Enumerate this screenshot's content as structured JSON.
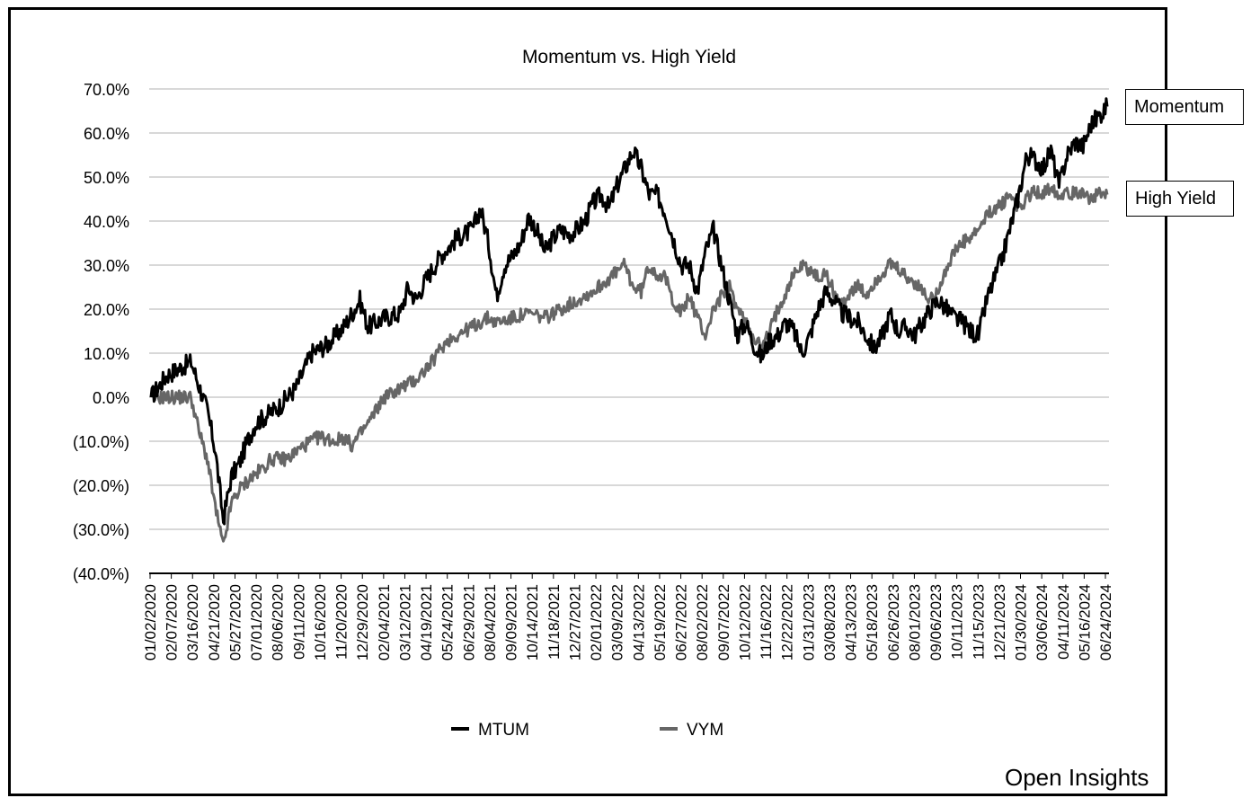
{
  "chart_data": {
    "type": "line",
    "title": "Momentum vs. High Yield",
    "xlabel": "",
    "ylabel": "",
    "ylim": [
      -40,
      70
    ],
    "yticks": [
      70,
      60,
      50,
      40,
      30,
      20,
      10,
      0,
      -10,
      -20,
      -30,
      -40
    ],
    "ytick_labels": [
      "70.0%",
      "60.0%",
      "50.0%",
      "40.0%",
      "30.0%",
      "20.0%",
      "10.0%",
      "0.0%",
      "(10.0%)",
      "(20.0%)",
      "(30.0%)",
      "(40.0%)"
    ],
    "xtick_labels": [
      "01/02/2020",
      "02/07/2020",
      "03/16/2020",
      "04/21/2020",
      "05/27/2020",
      "07/01/2020",
      "08/06/2020",
      "09/11/2020",
      "10/16/2020",
      "11/20/2020",
      "12/29/2020",
      "02/04/2021",
      "03/12/2021",
      "04/19/2021",
      "05/24/2021",
      "06/29/2021",
      "08/04/2021",
      "09/09/2021",
      "10/14/2021",
      "11/18/2021",
      "12/27/2021",
      "02/01/2022",
      "03/09/2022",
      "04/13/2022",
      "05/19/2022",
      "06/27/2022",
      "08/02/2022",
      "09/07/2022",
      "10/12/2022",
      "11/16/2022",
      "12/22/2022",
      "01/31/2023",
      "03/08/2023",
      "04/13/2023",
      "05/18/2023",
      "06/26/2023",
      "08/01/2023",
      "09/06/2023",
      "10/11/2023",
      "11/15/2023",
      "12/21/2023",
      "01/30/2024",
      "03/06/2024",
      "04/11/2024",
      "05/16/2024",
      "06/24/2024"
    ],
    "grid": true,
    "legend_position": "bottom",
    "series": [
      {
        "name": "MTUM",
        "color": "#000000",
        "values": [
          [
            0,
            0
          ],
          [
            2,
            5
          ],
          [
            5,
            8
          ],
          [
            7,
            -3
          ],
          [
            8,
            -12
          ],
          [
            9,
            -28
          ],
          [
            10,
            -18
          ],
          [
            11,
            -15
          ],
          [
            12,
            -10
          ],
          [
            13,
            -6
          ],
          [
            16,
            -2
          ],
          [
            18,
            2
          ],
          [
            20,
            10
          ],
          [
            22,
            12
          ],
          [
            24,
            16
          ],
          [
            26,
            22
          ],
          [
            27,
            16
          ],
          [
            29,
            18
          ],
          [
            31,
            19
          ],
          [
            32,
            25
          ],
          [
            33,
            22
          ],
          [
            34,
            26
          ],
          [
            36,
            32
          ],
          [
            38,
            36
          ],
          [
            40,
            38
          ],
          [
            41,
            43
          ],
          [
            42,
            35
          ],
          [
            43,
            23
          ],
          [
            44,
            30
          ],
          [
            45,
            32
          ],
          [
            46,
            35
          ],
          [
            47,
            41
          ],
          [
            48,
            38
          ],
          [
            49,
            33
          ],
          [
            50,
            36
          ],
          [
            51,
            38
          ],
          [
            52,
            37
          ],
          [
            53,
            38
          ],
          [
            54,
            40
          ],
          [
            55,
            44
          ],
          [
            56,
            46
          ],
          [
            57,
            43
          ],
          [
            58,
            48
          ],
          [
            59,
            52
          ],
          [
            60,
            56
          ],
          [
            61,
            52
          ],
          [
            62,
            46
          ],
          [
            63,
            46
          ],
          [
            64,
            42
          ],
          [
            65,
            36
          ],
          [
            66,
            30
          ],
          [
            67,
            30
          ],
          [
            68,
            24
          ],
          [
            69,
            33
          ],
          [
            70,
            38
          ],
          [
            71,
            30
          ],
          [
            72,
            22
          ],
          [
            73,
            14
          ],
          [
            74,
            17
          ],
          [
            75,
            12
          ],
          [
            76,
            9
          ],
          [
            77,
            13
          ],
          [
            78,
            14
          ],
          [
            79,
            17
          ],
          [
            80,
            15
          ],
          [
            81,
            10
          ],
          [
            82,
            14
          ],
          [
            83,
            20
          ],
          [
            84,
            24
          ],
          [
            85,
            22
          ],
          [
            86,
            19
          ],
          [
            87,
            18
          ],
          [
            88,
            17
          ],
          [
            89,
            14
          ],
          [
            90,
            11
          ],
          [
            91,
            14
          ],
          [
            92,
            19
          ],
          [
            93,
            15
          ],
          [
            94,
            16
          ],
          [
            95,
            14
          ],
          [
            96,
            17
          ],
          [
            97,
            20
          ],
          [
            98,
            22
          ],
          [
            99,
            20
          ],
          [
            100,
            18
          ],
          [
            101,
            17
          ],
          [
            102,
            15
          ],
          [
            103,
            14
          ],
          [
            104,
            22
          ],
          [
            105,
            27
          ],
          [
            106,
            32
          ],
          [
            107,
            39
          ],
          [
            108,
            46
          ],
          [
            109,
            55
          ],
          [
            110,
            54
          ],
          [
            111,
            52
          ],
          [
            112,
            56
          ],
          [
            113,
            48
          ],
          [
            114,
            55
          ],
          [
            115,
            58
          ],
          [
            116,
            57
          ],
          [
            117,
            62
          ],
          [
            118,
            64
          ],
          [
            119,
            66
          ]
        ]
      },
      {
        "name": "VYM",
        "color": "#666666",
        "values": [
          [
            0,
            0
          ],
          [
            3,
            0
          ],
          [
            5,
            0
          ],
          [
            6,
            -8
          ],
          [
            7,
            -14
          ],
          [
            8,
            -25
          ],
          [
            9,
            -34
          ],
          [
            10,
            -24
          ],
          [
            11,
            -21
          ],
          [
            12,
            -19
          ],
          [
            14,
            -16
          ],
          [
            15,
            -14
          ],
          [
            17,
            -14
          ],
          [
            19,
            -11
          ],
          [
            21,
            -9
          ],
          [
            23,
            -10
          ],
          [
            24,
            -9
          ],
          [
            25,
            -11
          ],
          [
            27,
            -6
          ],
          [
            28,
            -3
          ],
          [
            29,
            0
          ],
          [
            31,
            2
          ],
          [
            33,
            4
          ],
          [
            34,
            6
          ],
          [
            35,
            8
          ],
          [
            36,
            11
          ],
          [
            37,
            13
          ],
          [
            38,
            14
          ],
          [
            40,
            16
          ],
          [
            42,
            18
          ],
          [
            43,
            17
          ],
          [
            45,
            18
          ],
          [
            47,
            19
          ],
          [
            49,
            18
          ],
          [
            51,
            20
          ],
          [
            53,
            22
          ],
          [
            55,
            24
          ],
          [
            57,
            27
          ],
          [
            59,
            30
          ],
          [
            60,
            25
          ],
          [
            61,
            24
          ],
          [
            62,
            30
          ],
          [
            63,
            28
          ],
          [
            64,
            27
          ],
          [
            65,
            22
          ],
          [
            66,
            19
          ],
          [
            67,
            23
          ],
          [
            68,
            18
          ],
          [
            69,
            14
          ],
          [
            70,
            20
          ],
          [
            71,
            23
          ],
          [
            72,
            25
          ],
          [
            73,
            20
          ],
          [
            74,
            17
          ],
          [
            75,
            14
          ],
          [
            76,
            11
          ],
          [
            77,
            15
          ],
          [
            78,
            20
          ],
          [
            79,
            24
          ],
          [
            80,
            28
          ],
          [
            81,
            30
          ],
          [
            82,
            29
          ],
          [
            83,
            27
          ],
          [
            84,
            28
          ],
          [
            85,
            24
          ],
          [
            86,
            21
          ],
          [
            87,
            24
          ],
          [
            88,
            25
          ],
          [
            89,
            23
          ],
          [
            90,
            26
          ],
          [
            91,
            28
          ],
          [
            92,
            30
          ],
          [
            93,
            29
          ],
          [
            94,
            27
          ],
          [
            95,
            26
          ],
          [
            96,
            24
          ],
          [
            97,
            22
          ],
          [
            98,
            25
          ],
          [
            99,
            29
          ],
          [
            100,
            33
          ],
          [
            101,
            35
          ],
          [
            102,
            36
          ],
          [
            103,
            38
          ],
          [
            104,
            41
          ],
          [
            105,
            43
          ],
          [
            106,
            44
          ],
          [
            107,
            46
          ],
          [
            108,
            43
          ],
          [
            109,
            45
          ],
          [
            110,
            47
          ],
          [
            111,
            46
          ],
          [
            112,
            48
          ],
          [
            113,
            46
          ],
          [
            114,
            47
          ],
          [
            115,
            46
          ],
          [
            116,
            47
          ],
          [
            117,
            45
          ],
          [
            118,
            46
          ],
          [
            119,
            46
          ]
        ]
      }
    ],
    "annotations": [
      "Momentum",
      "High Yield"
    ]
  },
  "legend": [
    {
      "label": "MTUM",
      "color": "#000000"
    },
    {
      "label": "VYM",
      "color": "#666666"
    }
  ],
  "callouts": {
    "momentum": "Momentum",
    "high_yield": "High Yield"
  },
  "watermark": "Open Insights"
}
